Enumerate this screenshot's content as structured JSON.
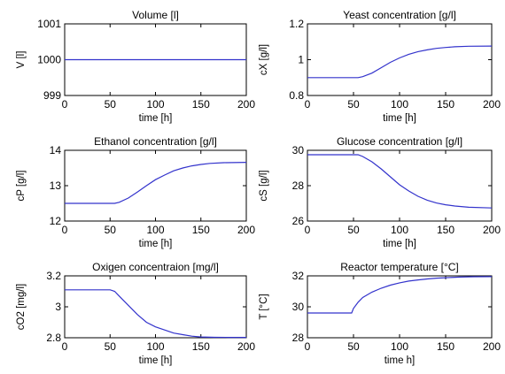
{
  "chart_data": [
    {
      "type": "line",
      "title": "Volume [l]",
      "xlabel": "time [h]",
      "ylabel": "V [l]",
      "xlim": [
        0,
        200
      ],
      "ylim": [
        999,
        1001
      ],
      "xticks": [
        0,
        50,
        100,
        150,
        200
      ],
      "yticks": [
        999,
        1000,
        1001
      ],
      "ytick_labels": [
        "999",
        "1000",
        "1001"
      ],
      "series": [
        {
          "color": "#3333cc",
          "x": [
            0,
            50,
            100,
            150,
            200
          ],
          "y": [
            1000,
            1000,
            1000,
            1000,
            1000
          ]
        }
      ]
    },
    {
      "type": "line",
      "title": "Yeast concentration [g/l]",
      "xlabel": "time [h]",
      "ylabel": "cX [g/l]",
      "xlim": [
        0,
        200
      ],
      "ylim": [
        0.8,
        1.2
      ],
      "xticks": [
        0,
        50,
        100,
        150,
        200
      ],
      "yticks": [
        0.8,
        1.0,
        1.2
      ],
      "ytick_labels": [
        "0.8",
        "1",
        "1.2"
      ],
      "series": [
        {
          "color": "#3333cc",
          "x": [
            0,
            55,
            60,
            70,
            80,
            90,
            100,
            110,
            120,
            130,
            140,
            150,
            160,
            175,
            200
          ],
          "y": [
            0.9,
            0.9,
            0.905,
            0.925,
            0.955,
            0.985,
            1.01,
            1.03,
            1.045,
            1.055,
            1.063,
            1.068,
            1.072,
            1.075,
            1.076
          ]
        }
      ]
    },
    {
      "type": "line",
      "title": "Ethanol concentration [g/l]",
      "xlabel": "time [h]",
      "ylabel": "cP [g/l]",
      "xlim": [
        0,
        200
      ],
      "ylim": [
        12,
        14
      ],
      "xticks": [
        0,
        50,
        100,
        150,
        200
      ],
      "yticks": [
        12,
        13,
        14
      ],
      "ytick_labels": [
        "12",
        "13",
        "14"
      ],
      "series": [
        {
          "color": "#3333cc",
          "x": [
            0,
            55,
            60,
            70,
            80,
            90,
            100,
            110,
            120,
            130,
            140,
            150,
            160,
            175,
            200
          ],
          "y": [
            12.5,
            12.5,
            12.53,
            12.65,
            12.82,
            13.0,
            13.17,
            13.3,
            13.42,
            13.5,
            13.56,
            13.6,
            13.63,
            13.65,
            13.66
          ]
        }
      ]
    },
    {
      "type": "line",
      "title": "Glucose concentration [g/l]",
      "xlabel": "time [h]",
      "ylabel": "cS [g/l]",
      "xlim": [
        0,
        200
      ],
      "ylim": [
        26,
        30
      ],
      "xticks": [
        0,
        50,
        100,
        150,
        200
      ],
      "yticks": [
        26,
        28,
        30
      ],
      "ytick_labels": [
        "26",
        "28",
        "30"
      ],
      "series": [
        {
          "color": "#3333cc",
          "x": [
            0,
            55,
            60,
            70,
            80,
            90,
            100,
            110,
            120,
            130,
            140,
            150,
            160,
            175,
            200
          ],
          "y": [
            29.75,
            29.75,
            29.65,
            29.35,
            28.95,
            28.5,
            28.05,
            27.7,
            27.4,
            27.18,
            27.02,
            26.92,
            26.85,
            26.78,
            26.74
          ]
        }
      ]
    },
    {
      "type": "line",
      "title": "Oxigen concentraion [mg/l]",
      "xlabel": "time [h]",
      "ylabel": "cO2 [mg/l]",
      "xlim": [
        0,
        200
      ],
      "ylim": [
        2.8,
        3.2
      ],
      "xticks": [
        0,
        50,
        100,
        150,
        200
      ],
      "yticks": [
        2.8,
        3.0,
        3.2
      ],
      "ytick_labels": [
        "2.8",
        "3",
        "3.2"
      ],
      "series": [
        {
          "color": "#3333cc",
          "x": [
            0,
            50,
            55,
            60,
            70,
            80,
            90,
            100,
            110,
            120,
            130,
            140,
            150,
            165,
            180,
            200
          ],
          "y": [
            3.11,
            3.11,
            3.1,
            3.07,
            3.01,
            2.95,
            2.9,
            2.87,
            2.85,
            2.83,
            2.82,
            2.81,
            2.805,
            2.803,
            2.802,
            2.802
          ]
        }
      ]
    },
    {
      "type": "line",
      "title": "Reactor temperature [°C]",
      "xlabel": "time h]",
      "ylabel": "T [°C]",
      "xlim": [
        0,
        200
      ],
      "ylim": [
        28,
        32
      ],
      "xticks": [
        0,
        50,
        100,
        150,
        200
      ],
      "yticks": [
        28,
        30,
        32
      ],
      "ytick_labels": [
        "28",
        "30",
        "32"
      ],
      "series": [
        {
          "color": "#3333cc",
          "x": [
            0,
            48,
            50,
            55,
            60,
            70,
            80,
            90,
            100,
            110,
            120,
            130,
            140,
            150,
            165,
            180,
            200
          ],
          "y": [
            29.6,
            29.6,
            29.9,
            30.3,
            30.6,
            30.95,
            31.2,
            31.4,
            31.55,
            31.66,
            31.74,
            31.8,
            31.85,
            31.88,
            31.92,
            31.94,
            31.95
          ]
        }
      ]
    }
  ]
}
